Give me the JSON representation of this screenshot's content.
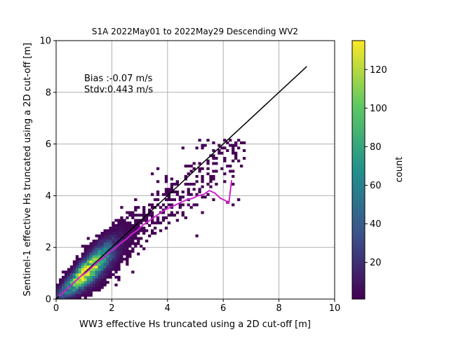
{
  "chart_data": {
    "type": "heatmap",
    "title": "S1A 2022May01 to 2022May29 Descending WV2",
    "xlabel": "WW3 effective Hs truncated using a 2D cut-off [m]",
    "ylabel": "Sentinel-1 effective Hs truncated using a 2D cut-off [m]",
    "xlim": [
      0,
      10
    ],
    "ylim": [
      0,
      10
    ],
    "xticks": [
      "0",
      "2",
      "4",
      "6",
      "8",
      "10"
    ],
    "yticks": [
      "0",
      "2",
      "4",
      "6",
      "8",
      "10"
    ],
    "grid": true,
    "annotations": [
      "Bias :-0.07 m/s",
      "Stdv:0.443 m/s"
    ],
    "colorbar": {
      "label": "count",
      "range": [
        1,
        135
      ],
      "ticks": [
        "20",
        "40",
        "60",
        "80",
        "100",
        "120"
      ],
      "colormap": "viridis"
    },
    "identity_line": {
      "x": [
        0,
        9
      ],
      "y": [
        0,
        9
      ],
      "color": "#000000"
    },
    "binned_mean": {
      "color": "#cc22cc",
      "x": [
        0.1,
        0.3,
        0.5,
        0.7,
        0.9,
        1.1,
        1.3,
        1.5,
        1.7,
        1.9,
        2.1,
        2.3,
        2.5,
        2.7,
        2.9,
        3.1,
        3.3,
        3.5,
        3.7,
        3.9,
        4.1,
        4.3,
        4.5,
        4.7,
        4.9,
        5.1,
        5.3,
        5.5,
        5.7,
        5.9,
        6.1,
        6.2,
        6.3
      ],
      "y": [
        0.1,
        0.3,
        0.5,
        0.7,
        0.9,
        1.05,
        1.25,
        1.45,
        1.6,
        1.8,
        1.95,
        2.15,
        2.3,
        2.5,
        2.65,
        2.85,
        3.0,
        3.15,
        3.3,
        3.45,
        3.55,
        3.65,
        3.75,
        3.85,
        3.9,
        4.0,
        4.05,
        4.2,
        4.1,
        3.9,
        3.8,
        3.7,
        4.6
      ]
    }
  }
}
